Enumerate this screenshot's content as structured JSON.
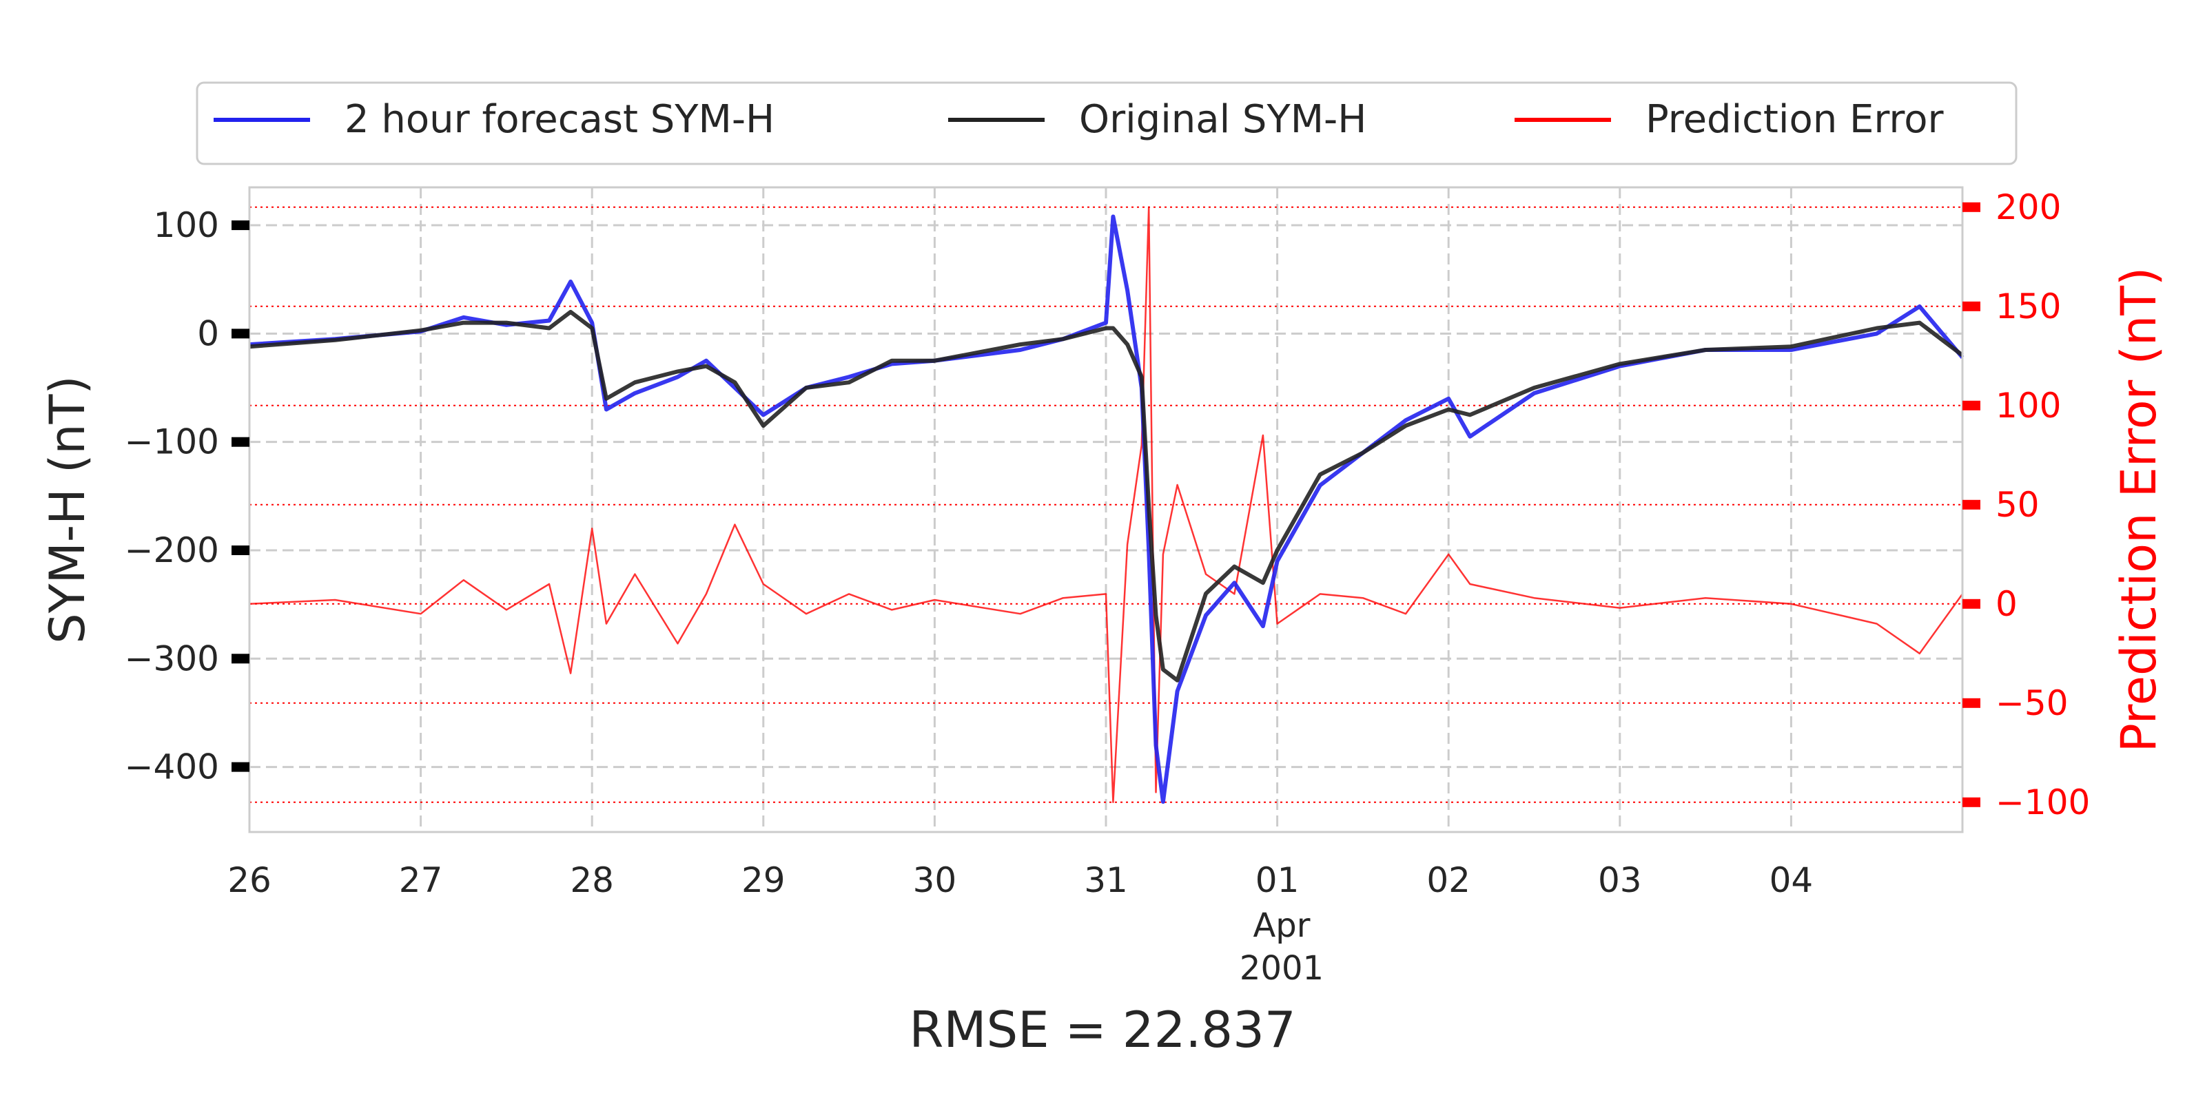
{
  "chart_data": {
    "type": "line",
    "xaxis": {
      "type": "date",
      "range": [
        "2001-03-26",
        "2001-04-05"
      ],
      "tick_labels": [
        "26",
        "27",
        "28",
        "29",
        "30",
        "31",
        "01",
        "02",
        "03",
        "04"
      ],
      "sublabel_month": "Apr",
      "sublabel_year": "2001"
    },
    "yaxis_left": {
      "label": "SYM-H (nT)",
      "ylim": [
        -460,
        135
      ],
      "ticks": [
        100,
        0,
        -100,
        -200,
        -300,
        -400
      ],
      "tick_labels": [
        "100",
        "0",
        "−100",
        "−200",
        "−300",
        "−400"
      ]
    },
    "yaxis_right": {
      "label": "Prediction Error (nT)",
      "ylim": [
        -115,
        210
      ],
      "ticks": [
        200,
        150,
        100,
        50,
        0,
        -50,
        -100
      ],
      "tick_labels": [
        "200",
        "150",
        "100",
        "50",
        "0",
        "−50",
        "−100"
      ],
      "color": "#ff0000"
    },
    "grid": true,
    "legend_position": "top",
    "series": [
      {
        "name": "2 hour forecast SYM-H",
        "color": "#2222ee",
        "axis": "left",
        "points": [
          [
            "2001-03-26T00:00",
            -10
          ],
          [
            "2001-03-26T12:00",
            -5
          ],
          [
            "2001-03-27T00:00",
            2
          ],
          [
            "2001-03-27T06:00",
            15
          ],
          [
            "2001-03-27T12:00",
            8
          ],
          [
            "2001-03-27T18:00",
            12
          ],
          [
            "2001-03-27T21:00",
            48
          ],
          [
            "2001-03-28T00:00",
            10
          ],
          [
            "2001-03-28T02:00",
            -70
          ],
          [
            "2001-03-28T06:00",
            -55
          ],
          [
            "2001-03-28T12:00",
            -40
          ],
          [
            "2001-03-28T16:00",
            -25
          ],
          [
            "2001-03-28T20:00",
            -50
          ],
          [
            "2001-03-29T00:00",
            -75
          ],
          [
            "2001-03-29T06:00",
            -50
          ],
          [
            "2001-03-29T12:00",
            -40
          ],
          [
            "2001-03-29T18:00",
            -28
          ],
          [
            "2001-03-30T00:00",
            -25
          ],
          [
            "2001-03-30T12:00",
            -15
          ],
          [
            "2001-03-30T18:00",
            -5
          ],
          [
            "2001-03-31T00:00",
            10
          ],
          [
            "2001-03-31T01:00",
            108
          ],
          [
            "2001-03-31T03:00",
            40
          ],
          [
            "2001-03-31T05:00",
            -50
          ],
          [
            "2001-03-31T06:00",
            -200
          ],
          [
            "2001-03-31T07:00",
            -380
          ],
          [
            "2001-03-31T08:00",
            -432
          ],
          [
            "2001-03-31T10:00",
            -330
          ],
          [
            "2001-03-31T14:00",
            -260
          ],
          [
            "2001-03-31T18:00",
            -230
          ],
          [
            "2001-03-31T22:00",
            -270
          ],
          [
            "2001-04-01T00:00",
            -210
          ],
          [
            "2001-04-01T06:00",
            -140
          ],
          [
            "2001-04-01T12:00",
            -110
          ],
          [
            "2001-04-01T18:00",
            -80
          ],
          [
            "2001-04-02T00:00",
            -60
          ],
          [
            "2001-04-02T03:00",
            -95
          ],
          [
            "2001-04-02T12:00",
            -55
          ],
          [
            "2001-04-03T00:00",
            -30
          ],
          [
            "2001-04-03T12:00",
            -15
          ],
          [
            "2001-04-04T00:00",
            -15
          ],
          [
            "2001-04-04T12:00",
            0
          ],
          [
            "2001-04-04T18:00",
            25
          ],
          [
            "2001-04-05T00:00",
            -22
          ]
        ]
      },
      {
        "name": "Original SYM-H",
        "color": "#222222",
        "axis": "left",
        "points": [
          [
            "2001-03-26T00:00",
            -12
          ],
          [
            "2001-03-26T12:00",
            -6
          ],
          [
            "2001-03-27T00:00",
            3
          ],
          [
            "2001-03-27T06:00",
            10
          ],
          [
            "2001-03-27T12:00",
            10
          ],
          [
            "2001-03-27T18:00",
            5
          ],
          [
            "2001-03-27T21:00",
            20
          ],
          [
            "2001-03-28T00:00",
            5
          ],
          [
            "2001-03-28T02:00",
            -60
          ],
          [
            "2001-03-28T06:00",
            -45
          ],
          [
            "2001-03-28T12:00",
            -35
          ],
          [
            "2001-03-28T16:00",
            -30
          ],
          [
            "2001-03-28T20:00",
            -45
          ],
          [
            "2001-03-29T00:00",
            -85
          ],
          [
            "2001-03-29T06:00",
            -50
          ],
          [
            "2001-03-29T12:00",
            -45
          ],
          [
            "2001-03-29T18:00",
            -25
          ],
          [
            "2001-03-30T00:00",
            -25
          ],
          [
            "2001-03-30T12:00",
            -10
          ],
          [
            "2001-03-30T18:00",
            -5
          ],
          [
            "2001-03-31T00:00",
            5
          ],
          [
            "2001-03-31T01:00",
            5
          ],
          [
            "2001-03-31T03:00",
            -10
          ],
          [
            "2001-03-31T05:00",
            -40
          ],
          [
            "2001-03-31T06:00",
            -160
          ],
          [
            "2001-03-31T07:00",
            -260
          ],
          [
            "2001-03-31T08:00",
            -310
          ],
          [
            "2001-03-31T10:00",
            -320
          ],
          [
            "2001-03-31T14:00",
            -240
          ],
          [
            "2001-03-31T18:00",
            -215
          ],
          [
            "2001-03-31T22:00",
            -230
          ],
          [
            "2001-04-01T00:00",
            -200
          ],
          [
            "2001-04-01T06:00",
            -130
          ],
          [
            "2001-04-01T12:00",
            -110
          ],
          [
            "2001-04-01T18:00",
            -85
          ],
          [
            "2001-04-02T00:00",
            -70
          ],
          [
            "2001-04-02T03:00",
            -75
          ],
          [
            "2001-04-02T12:00",
            -50
          ],
          [
            "2001-04-03T00:00",
            -28
          ],
          [
            "2001-04-03T12:00",
            -15
          ],
          [
            "2001-04-04T00:00",
            -12
          ],
          [
            "2001-04-04T12:00",
            5
          ],
          [
            "2001-04-04T18:00",
            10
          ],
          [
            "2001-04-05T00:00",
            -20
          ]
        ]
      },
      {
        "name": "Prediction Error",
        "color": "#ff0000",
        "axis": "right",
        "points": [
          [
            "2001-03-26T00:00",
            0
          ],
          [
            "2001-03-26T12:00",
            2
          ],
          [
            "2001-03-27T00:00",
            -5
          ],
          [
            "2001-03-27T06:00",
            12
          ],
          [
            "2001-03-27T12:00",
            -3
          ],
          [
            "2001-03-27T18:00",
            10
          ],
          [
            "2001-03-27T21:00",
            -35
          ],
          [
            "2001-03-28T00:00",
            38
          ],
          [
            "2001-03-28T02:00",
            -10
          ],
          [
            "2001-03-28T06:00",
            15
          ],
          [
            "2001-03-28T12:00",
            -20
          ],
          [
            "2001-03-28T16:00",
            5
          ],
          [
            "2001-03-28T20:00",
            40
          ],
          [
            "2001-03-29T00:00",
            10
          ],
          [
            "2001-03-29T06:00",
            -5
          ],
          [
            "2001-03-29T12:00",
            5
          ],
          [
            "2001-03-29T18:00",
            -3
          ],
          [
            "2001-03-30T00:00",
            2
          ],
          [
            "2001-03-30T12:00",
            -5
          ],
          [
            "2001-03-30T18:00",
            3
          ],
          [
            "2001-03-31T00:00",
            5
          ],
          [
            "2001-03-31T01:00",
            -100
          ],
          [
            "2001-03-31T03:00",
            30
          ],
          [
            "2001-03-31T05:00",
            80
          ],
          [
            "2001-03-31T06:00",
            200
          ],
          [
            "2001-03-31T07:00",
            -95
          ],
          [
            "2001-03-31T08:00",
            25
          ],
          [
            "2001-03-31T10:00",
            60
          ],
          [
            "2001-03-31T14:00",
            15
          ],
          [
            "2001-03-31T18:00",
            5
          ],
          [
            "2001-03-31T22:00",
            85
          ],
          [
            "2001-04-01T00:00",
            -10
          ],
          [
            "2001-04-01T06:00",
            5
          ],
          [
            "2001-04-01T12:00",
            3
          ],
          [
            "2001-04-01T18:00",
            -5
          ],
          [
            "2001-04-02T00:00",
            25
          ],
          [
            "2001-04-02T03:00",
            10
          ],
          [
            "2001-04-02T12:00",
            3
          ],
          [
            "2001-04-03T00:00",
            -2
          ],
          [
            "2001-04-03T12:00",
            3
          ],
          [
            "2001-04-04T00:00",
            0
          ],
          [
            "2001-04-04T12:00",
            -10
          ],
          [
            "2001-04-04T18:00",
            -25
          ],
          [
            "2001-04-05T00:00",
            5
          ]
        ]
      }
    ],
    "annotation": "RMSE = 22.837"
  }
}
